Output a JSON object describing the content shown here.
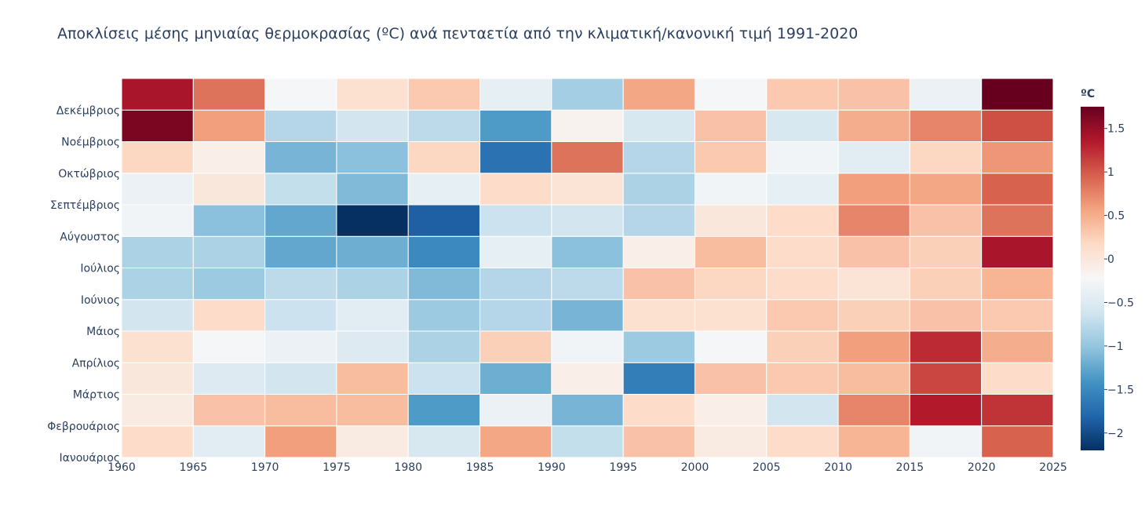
{
  "chart_data": {
    "type": "heatmap",
    "title": "Αποκλίσεις μέσης μηνιαίας θερμοκρασίας (ºC) ανά πενταετία από την κλιματική/κανονική τιμή 1991-2020",
    "x_ticks": [
      "1960",
      "1965",
      "1970",
      "1975",
      "1980",
      "1985",
      "1990",
      "1995",
      "2000",
      "2005",
      "2010",
      "2015",
      "2020",
      "2025"
    ],
    "x_range": [
      1960,
      2025
    ],
    "x_bins": [
      1960,
      1965,
      1970,
      1975,
      1980,
      1985,
      1990,
      1995,
      2000,
      2005,
      2010,
      2015,
      2020,
      2025
    ],
    "y_labels": [
      "Ιανουάριος",
      "Φεβρουάριος",
      "Μάρτιος",
      "Απρίλιος",
      "Μάιος",
      "Ιούνιος",
      "Ιούλιος",
      "Αύγουστος",
      "Σεπτέμβριος",
      "Οκτώβριος",
      "Νοέμβριος",
      "Δεκέμβριος"
    ],
    "colorbar": {
      "title": "ºC",
      "range": [
        -2.2,
        1.75
      ],
      "ticks": [
        1.5,
        1,
        0.5,
        0,
        -0.5,
        -1,
        -1.5,
        -2
      ],
      "tick_labels": [
        "1.5",
        "1",
        "0.5",
        "0",
        "−0.5",
        "−1",
        "−1.5",
        "−2"
      ],
      "colorscale": [
        "#053061",
        "#2166ac",
        "#4393c3",
        "#92c5de",
        "#d1e5f0",
        "#f7f7f7",
        "#fddbc7",
        "#f4a582",
        "#d6604d",
        "#b2182b",
        "#67001f"
      ]
    },
    "z": [
      [
        0.15,
        -0.45,
        0.6,
        -0.05,
        -0.55,
        0.55,
        -0.7,
        0.35,
        -0.05,
        0.15,
        0.45,
        -0.3,
        0.95
      ],
      [
        -0.05,
        0.35,
        0.4,
        0.4,
        -1.35,
        -0.35,
        -1.15,
        0.15,
        -0.1,
        -0.6,
        0.75,
        1.35,
        1.2
      ],
      [
        0.0,
        -0.5,
        -0.6,
        0.4,
        -0.65,
        -1.2,
        -0.1,
        -1.6,
        0.35,
        0.3,
        0.4,
        1.1,
        0.15
      ],
      [
        0.1,
        -0.25,
        -0.35,
        -0.5,
        -0.85,
        0.25,
        -0.3,
        -0.95,
        -0.25,
        0.25,
        0.6,
        1.25,
        0.5
      ],
      [
        -0.6,
        0.15,
        -0.65,
        -0.45,
        -0.95,
        -0.8,
        -1.15,
        0.1,
        0.1,
        0.3,
        0.25,
        0.35,
        0.3
      ],
      [
        -0.85,
        -0.95,
        -0.75,
        -0.85,
        -1.1,
        -0.8,
        -0.75,
        0.35,
        0.2,
        0.15,
        0.05,
        0.25,
        0.45
      ],
      [
        -0.85,
        -0.85,
        -1.25,
        -1.2,
        -1.5,
        -0.4,
        -1.05,
        -0.1,
        0.4,
        0.15,
        0.35,
        0.25,
        1.4
      ],
      [
        -0.3,
        -1.05,
        -1.25,
        -2.2,
        -1.85,
        -0.65,
        -0.6,
        -0.8,
        0.0,
        0.15,
        0.75,
        0.35,
        0.85
      ],
      [
        -0.35,
        0.0,
        -0.7,
        -1.1,
        -0.4,
        0.15,
        0.05,
        -0.85,
        -0.3,
        -0.4,
        0.6,
        0.55,
        0.95
      ],
      [
        0.2,
        -0.1,
        -1.15,
        -1.05,
        0.2,
        -1.7,
        0.85,
        -0.8,
        0.3,
        -0.3,
        -0.45,
        0.2,
        0.65
      ],
      [
        1.65,
        0.6,
        -0.8,
        -0.6,
        -0.75,
        -1.35,
        -0.15,
        -0.55,
        0.35,
        -0.55,
        0.5,
        0.75,
        1.05
      ],
      [
        1.4,
        0.85,
        -0.25,
        0.1,
        0.3,
        -0.4,
        -0.9,
        0.55,
        -0.25,
        0.3,
        0.35,
        -0.35,
        1.75
      ]
    ]
  }
}
